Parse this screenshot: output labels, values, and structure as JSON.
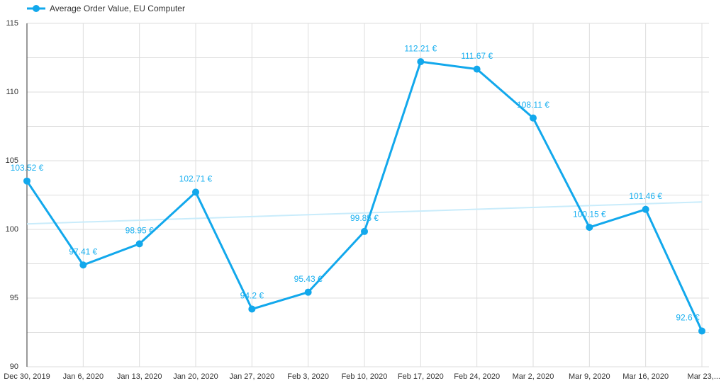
{
  "chart_data": {
    "type": "line",
    "legend": "Average Order Value, EU Computer",
    "categories": [
      "Dec 30, 2019",
      "Jan 6, 2020",
      "Jan 13, 2020",
      "Jan 20, 2020",
      "Jan 27, 2020",
      "Feb 3, 2020",
      "Feb 10, 2020",
      "Feb 17, 2020",
      "Feb 24, 2020",
      "Mar 2, 2020",
      "Mar 9, 2020",
      "Mar 16, 2020",
      "Mar 23,..."
    ],
    "series": [
      {
        "name": "Average Order Value, EU Computer",
        "color": "#12a8ec",
        "values": [
          103.52,
          97.41,
          98.95,
          102.71,
          94.2,
          95.43,
          99.85,
          112.21,
          111.67,
          108.11,
          100.15,
          101.46,
          92.6
        ],
        "value_labels": [
          "103.52 €",
          "97.41 €",
          "98.95 €",
          "102.71 €",
          "94.2 €",
          "95.43 €",
          "99.85 €",
          "112.21 €",
          "111.67 €",
          "108.11 €",
          "100.15 €",
          "101.46 €",
          "92.6 €"
        ]
      }
    ],
    "trendline": {
      "color": "#c9ecfb",
      "values": [
        100.4,
        102.0
      ]
    },
    "ylim": [
      90,
      115
    ],
    "yticks": [
      90,
      95,
      100,
      105,
      110,
      115
    ],
    "ygrid": [
      90,
      92.5,
      95,
      97.5,
      100,
      102.5,
      105,
      107.5,
      110,
      112.5,
      115
    ],
    "grid": true
  }
}
